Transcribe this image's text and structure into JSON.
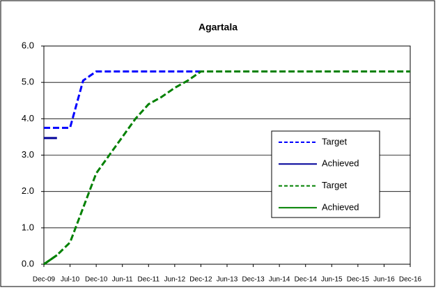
{
  "chart_data": {
    "type": "line",
    "title": "Agartala",
    "categories": [
      "Dec-09",
      null,
      "Jul-10",
      null,
      "Dec-10",
      null,
      "Jun-11",
      null,
      "Dec-11",
      null,
      "Jun-12",
      null,
      "Dec-12",
      null,
      "Jun-13",
      null,
      "Dec-13",
      null,
      "Jun-14",
      null,
      "Dec-14",
      null,
      "Jun-15",
      null,
      "Dec-15",
      null,
      "Jun-16",
      null,
      "Dec-16"
    ],
    "series": [
      {
        "name": "Target",
        "color": "#0000ff",
        "dashed": true,
        "values": [
          3.75,
          3.75,
          3.75,
          5.05,
          5.3,
          5.3,
          5.3,
          5.3,
          5.3,
          5.3,
          5.3,
          5.3,
          5.3,
          null,
          null,
          null,
          null,
          null,
          null,
          null,
          null,
          null,
          null,
          null,
          null,
          null,
          null,
          null,
          null
        ]
      },
      {
        "name": "Achieved",
        "color": "#000099",
        "dashed": false,
        "values": [
          3.47,
          3.47,
          null,
          null,
          null,
          null,
          null,
          null,
          null,
          null,
          null,
          null,
          null,
          null,
          null,
          null,
          null,
          null,
          null,
          null,
          null,
          null,
          null,
          null,
          null,
          null,
          null,
          null,
          null
        ]
      },
      {
        "name": "Target",
        "color": "#008000",
        "dashed": true,
        "values": [
          0,
          0.25,
          0.6,
          1.55,
          2.5,
          3.0,
          3.5,
          4.0,
          4.4,
          4.6,
          4.85,
          5.05,
          5.3,
          5.3,
          5.3,
          5.3,
          5.3,
          5.3,
          5.3,
          5.3,
          5.3,
          5.3,
          5.3,
          5.3,
          5.3,
          5.3,
          5.3,
          5.3,
          5.3
        ]
      },
      {
        "name": "Achieved",
        "color": "#008000",
        "dashed": false,
        "values": [
          0,
          0.25,
          null,
          null,
          null,
          null,
          null,
          null,
          null,
          null,
          null,
          null,
          null,
          null,
          null,
          null,
          null,
          null,
          null,
          null,
          null,
          null,
          null,
          null,
          null,
          null,
          null,
          null,
          null
        ]
      }
    ],
    "ylim": [
      0,
      6
    ],
    "yticks": [
      {
        "value": 0,
        "label": "0.0"
      },
      {
        "value": 1,
        "label": "1.0"
      },
      {
        "value": 2,
        "label": "2.0"
      },
      {
        "value": 3,
        "label": "3.0"
      },
      {
        "value": 4,
        "label": "4.0"
      },
      {
        "value": 5,
        "label": "5.0"
      },
      {
        "value": 6,
        "label": "6.0"
      }
    ],
    "grid": true
  }
}
